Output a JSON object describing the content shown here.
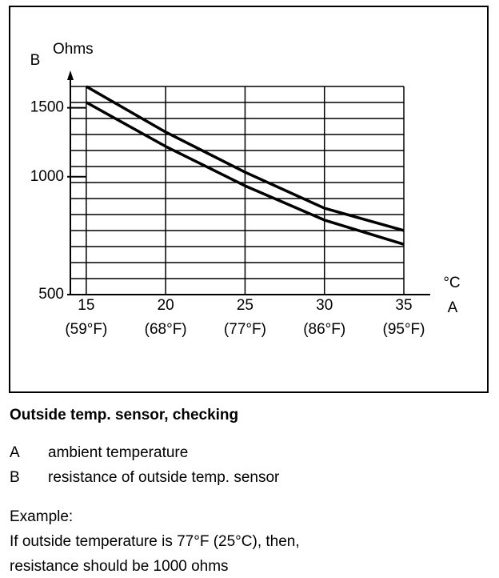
{
  "chart_data": {
    "type": "line",
    "y_letter": "B",
    "y_unit": "Ohms",
    "x_unit": "°C",
    "x_letter": "A",
    "x": [
      15,
      20,
      25,
      30,
      35
    ],
    "x_sublabels": [
      "(59°F)",
      "(68°F)",
      "(77°F)",
      "(86°F)",
      "(95°F)"
    ],
    "series": [
      {
        "color": "#000000",
        "values": [
          1700,
          1300,
          1027,
          831,
          729
        ]
      },
      {
        "color": "#000000",
        "values": [
          1548,
          1195,
          948,
          775,
          672
        ]
      }
    ],
    "xlim": [
      14,
      35
    ],
    "xticks": [
      15,
      20,
      25,
      30,
      35
    ],
    "ylim": [
      500,
      1700
    ],
    "yticks": [
      500,
      1000,
      1500
    ],
    "log_y": true,
    "grid": true
  },
  "caption": "Outside temp. sensor, checking",
  "legend": [
    [
      "A",
      "ambient temperature"
    ],
    [
      "B",
      "resistance of outside temp. sensor"
    ]
  ],
  "example": [
    "Example:",
    "If outside temperature is 77°F (25°C), then,",
    "resistance should be 1000 ohms"
  ]
}
